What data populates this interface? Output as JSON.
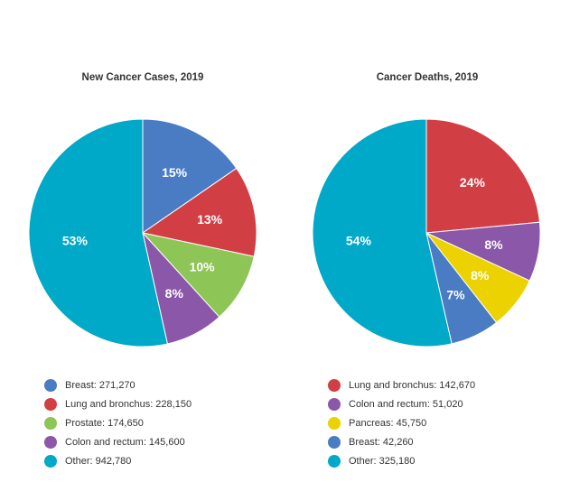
{
  "chart_data": [
    {
      "type": "pie",
      "title": "New Cancer Cases, 2019",
      "slices": [
        {
          "label": "Breast",
          "value": 271270,
          "value_text": "271,270",
          "percent_label": "15%",
          "color": "#4a7cc4"
        },
        {
          "label": "Lung and bronchus",
          "value": 228150,
          "value_text": "228,150",
          "percent_label": "13%",
          "color": "#d13f45"
        },
        {
          "label": "Prostate",
          "value": 174650,
          "value_text": "174,650",
          "percent_label": "10%",
          "color": "#8dc556"
        },
        {
          "label": "Colon and rectum",
          "value": 145600,
          "value_text": "145,600",
          "percent_label": "8%",
          "color": "#8a57a9"
        },
        {
          "label": "Other",
          "value": 942780,
          "value_text": "942,780",
          "percent_label": "53%",
          "color": "#00a9c8"
        }
      ]
    },
    {
      "type": "pie",
      "title": "Cancer Deaths, 2019",
      "slices": [
        {
          "label": "Lung and bronchus",
          "value": 142670,
          "value_text": "142,670",
          "percent_label": "24%",
          "color": "#d13f45"
        },
        {
          "label": "Colon and rectum",
          "value": 51020,
          "value_text": "51,020",
          "percent_label": "8%",
          "color": "#8a57a9"
        },
        {
          "label": "Pancreas",
          "value": 45750,
          "value_text": "45,750",
          "percent_label": "8%",
          "color": "#ebd200"
        },
        {
          "label": "Breast",
          "value": 42260,
          "value_text": "42,260",
          "percent_label": "7%",
          "color": "#4a7cc4"
        },
        {
          "label": "Other",
          "value": 325180,
          "value_text": "325,180",
          "percent_label": "54%",
          "color": "#00a9c8"
        }
      ]
    }
  ]
}
